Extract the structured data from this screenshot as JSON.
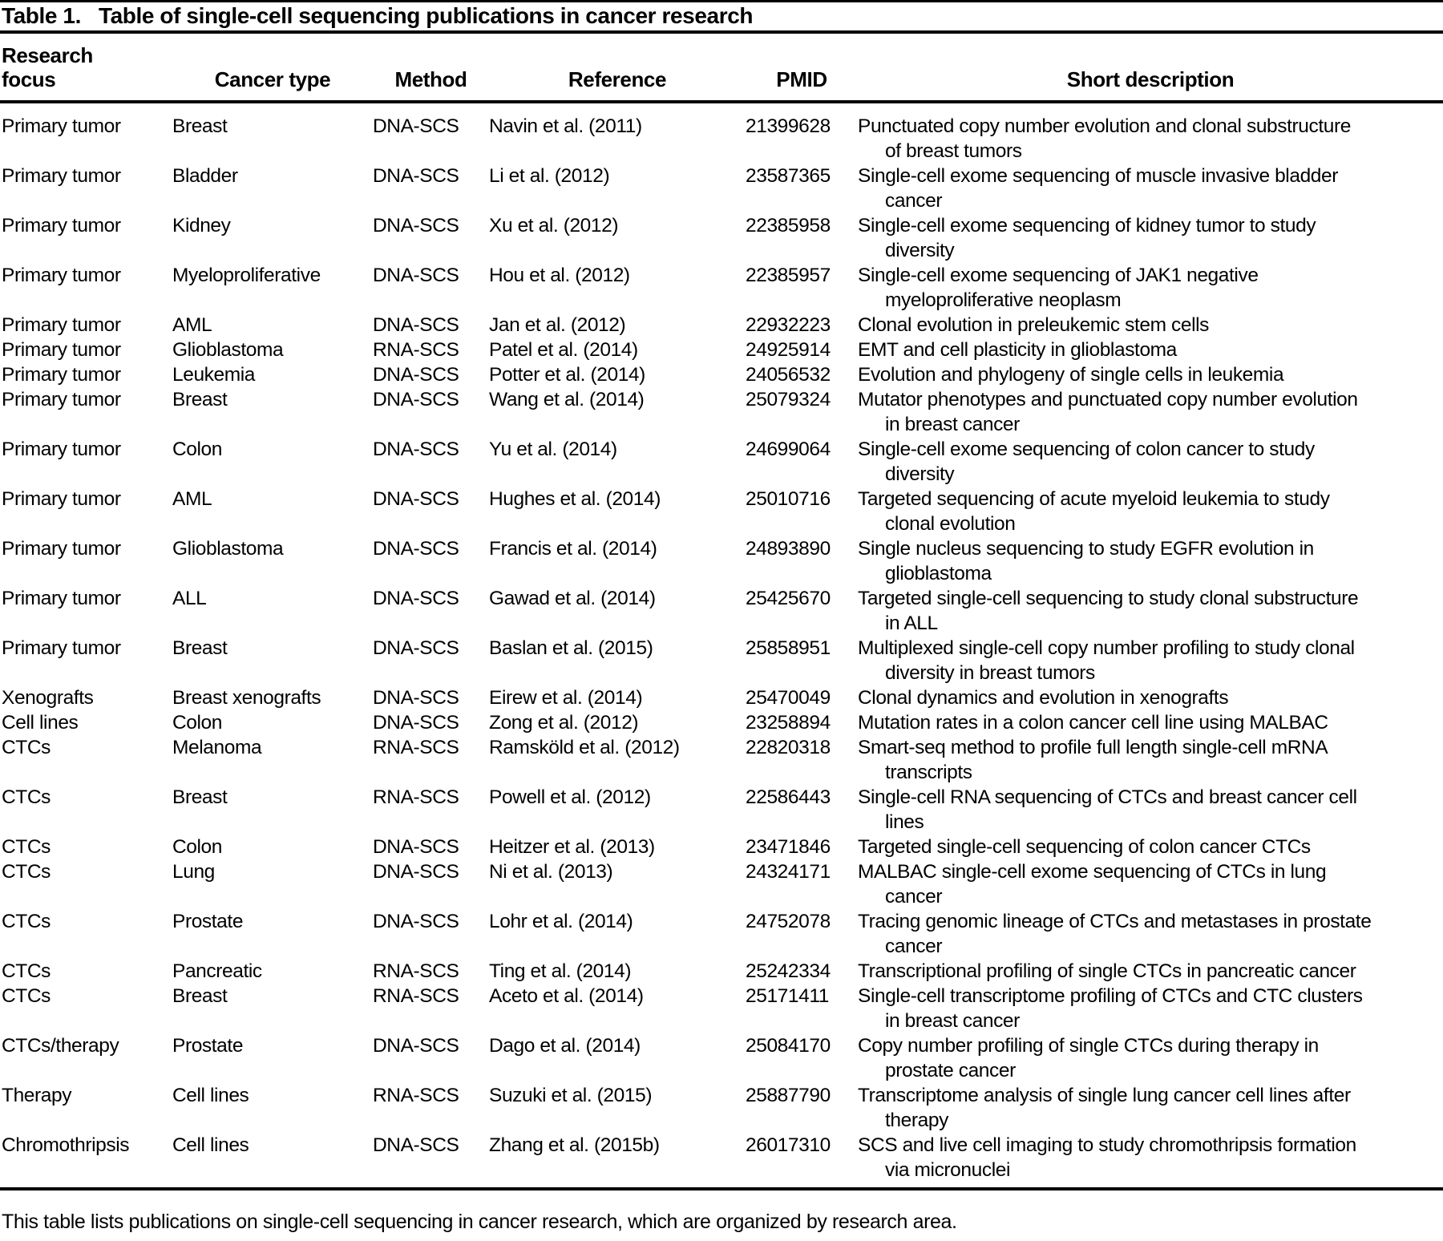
{
  "page": {
    "title_label": "Table 1.",
    "title_text": "Table of single-cell sequencing publications in cancer research",
    "footnote": "This table lists publications on single-cell sequencing in cancer research, which are organized by research area."
  },
  "table": {
    "columns": [
      {
        "key": "focus",
        "label": "Research focus"
      },
      {
        "key": "cancer_type",
        "label": "Cancer type"
      },
      {
        "key": "method",
        "label": "Method"
      },
      {
        "key": "reference",
        "label": "Reference"
      },
      {
        "key": "pmid",
        "label": "PMID"
      },
      {
        "key": "description",
        "label": "Short description"
      }
    ],
    "rows": [
      {
        "focus": "Primary tumor",
        "cancer_type": "Breast",
        "method": "DNA-SCS",
        "reference": "Navin et al. (2011)",
        "pmid": "21399628",
        "description": "Punctuated copy number evolution and clonal substructure\nof breast tumors"
      },
      {
        "focus": "Primary tumor",
        "cancer_type": "Bladder",
        "method": "DNA-SCS",
        "reference": "Li et al. (2012)",
        "pmid": "23587365",
        "description": "Single-cell exome sequencing of muscle invasive bladder\ncancer"
      },
      {
        "focus": "Primary tumor",
        "cancer_type": "Kidney",
        "method": "DNA-SCS",
        "reference": "Xu et al. (2012)",
        "pmid": "22385958",
        "description": "Single-cell exome sequencing of kidney tumor to study\ndiversity"
      },
      {
        "focus": "Primary tumor",
        "cancer_type": "Myeloproliferative",
        "method": "DNA-SCS",
        "reference": "Hou et al. (2012)",
        "pmid": "22385957",
        "description": "Single-cell exome sequencing of JAK1 negative\nmyeloproliferative neoplasm"
      },
      {
        "focus": "Primary tumor",
        "cancer_type": "AML",
        "method": "DNA-SCS",
        "reference": "Jan et al. (2012)",
        "pmid": "22932223",
        "description": "Clonal evolution in preleukemic stem cells"
      },
      {
        "focus": "Primary tumor",
        "cancer_type": "Glioblastoma",
        "method": "RNA-SCS",
        "reference": "Patel et al. (2014)",
        "pmid": "24925914",
        "description": "EMT and cell plasticity in glioblastoma"
      },
      {
        "focus": "Primary tumor",
        "cancer_type": "Leukemia",
        "method": "DNA-SCS",
        "reference": "Potter et al. (2014)",
        "pmid": "24056532",
        "description": "Evolution and phylogeny of single cells in leukemia"
      },
      {
        "focus": "Primary tumor",
        "cancer_type": "Breast",
        "method": "DNA-SCS",
        "reference": "Wang et al. (2014)",
        "pmid": "25079324",
        "description": "Mutator phenotypes and punctuated copy number evolution\nin breast cancer"
      },
      {
        "focus": "Primary tumor",
        "cancer_type": "Colon",
        "method": "DNA-SCS",
        "reference": "Yu et al. (2014)",
        "pmid": "24699064",
        "description": "Single-cell exome sequencing of colon cancer to study\ndiversity"
      },
      {
        "focus": "Primary tumor",
        "cancer_type": "AML",
        "method": "DNA-SCS",
        "reference": "Hughes et al. (2014)",
        "pmid": "25010716",
        "description": "Targeted sequencing of acute myeloid leukemia to study\nclonal evolution"
      },
      {
        "focus": "Primary tumor",
        "cancer_type": "Glioblastoma",
        "method": "DNA-SCS",
        "reference": "Francis et al. (2014)",
        "pmid": "24893890",
        "description": "Single nucleus sequencing to study EGFR evolution in\nglioblastoma"
      },
      {
        "focus": "Primary tumor",
        "cancer_type": "ALL",
        "method": "DNA-SCS",
        "reference": "Gawad et al. (2014)",
        "pmid": "25425670",
        "description": "Targeted single-cell sequencing to study clonal substructure\nin ALL"
      },
      {
        "focus": "Primary tumor",
        "cancer_type": "Breast",
        "method": "DNA-SCS",
        "reference": "Baslan et al. (2015)",
        "pmid": "25858951",
        "description": "Multiplexed single-cell copy number profiling to study clonal\ndiversity in breast tumors"
      },
      {
        "focus": "Xenografts",
        "cancer_type": "Breast xenografts",
        "method": "DNA-SCS",
        "reference": "Eirew et al. (2014)",
        "pmid": "25470049",
        "description": "Clonal dynamics and evolution in xenografts"
      },
      {
        "focus": "Cell lines",
        "cancer_type": "Colon",
        "method": "DNA-SCS",
        "reference": "Zong et al. (2012)",
        "pmid": "23258894",
        "description": "Mutation rates in a colon cancer cell line using MALBAC"
      },
      {
        "focus": "CTCs",
        "cancer_type": "Melanoma",
        "method": "RNA-SCS",
        "reference": "Ramsköld et al. (2012)",
        "pmid": "22820318",
        "description": "Smart-seq method to profile full length single-cell mRNA\ntranscripts"
      },
      {
        "focus": "CTCs",
        "cancer_type": "Breast",
        "method": "RNA-SCS",
        "reference": "Powell et al. (2012)",
        "pmid": "22586443",
        "description": "Single-cell RNA sequencing of CTCs and breast cancer cell\nlines"
      },
      {
        "focus": "CTCs",
        "cancer_type": "Colon",
        "method": "DNA-SCS",
        "reference": "Heitzer et al. (2013)",
        "pmid": "23471846",
        "description": "Targeted single-cell sequencing of colon cancer CTCs"
      },
      {
        "focus": "CTCs",
        "cancer_type": "Lung",
        "method": "DNA-SCS",
        "reference": "Ni et al. (2013)",
        "pmid": "24324171",
        "description": "MALBAC single-cell exome sequencing of CTCs in lung\ncancer"
      },
      {
        "focus": "CTCs",
        "cancer_type": "Prostate",
        "method": "DNA-SCS",
        "reference": "Lohr et al. (2014)",
        "pmid": "24752078",
        "description": "Tracing genomic lineage of CTCs and metastases in prostate\ncancer"
      },
      {
        "focus": "CTCs",
        "cancer_type": "Pancreatic",
        "method": "RNA-SCS",
        "reference": "Ting et al. (2014)",
        "pmid": "25242334",
        "description": "Transcriptional profiling of single CTCs in pancreatic cancer"
      },
      {
        "focus": "CTCs",
        "cancer_type": "Breast",
        "method": "RNA-SCS",
        "reference": "Aceto et al. (2014)",
        "pmid": "25171411",
        "description": "Single-cell transcriptome profiling of CTCs and CTC clusters\nin breast cancer"
      },
      {
        "focus": "CTCs/therapy",
        "cancer_type": "Prostate",
        "method": "DNA-SCS",
        "reference": "Dago et al. (2014)",
        "pmid": "25084170",
        "description": "Copy number profiling of single CTCs during therapy in\nprostate cancer"
      },
      {
        "focus": "Therapy",
        "cancer_type": "Cell lines",
        "method": "RNA-SCS",
        "reference": "Suzuki et al. (2015)",
        "pmid": "25887790",
        "description": "Transcriptome analysis of single lung cancer cell lines after\ntherapy"
      },
      {
        "focus": "Chromothripsis",
        "cancer_type": "Cell lines",
        "method": "DNA-SCS",
        "reference": "Zhang et al. (2015b)",
        "pmid": "26017310",
        "description": "SCS and live cell imaging to study chromothripsis formation\nvia micronuclei"
      }
    ]
  }
}
